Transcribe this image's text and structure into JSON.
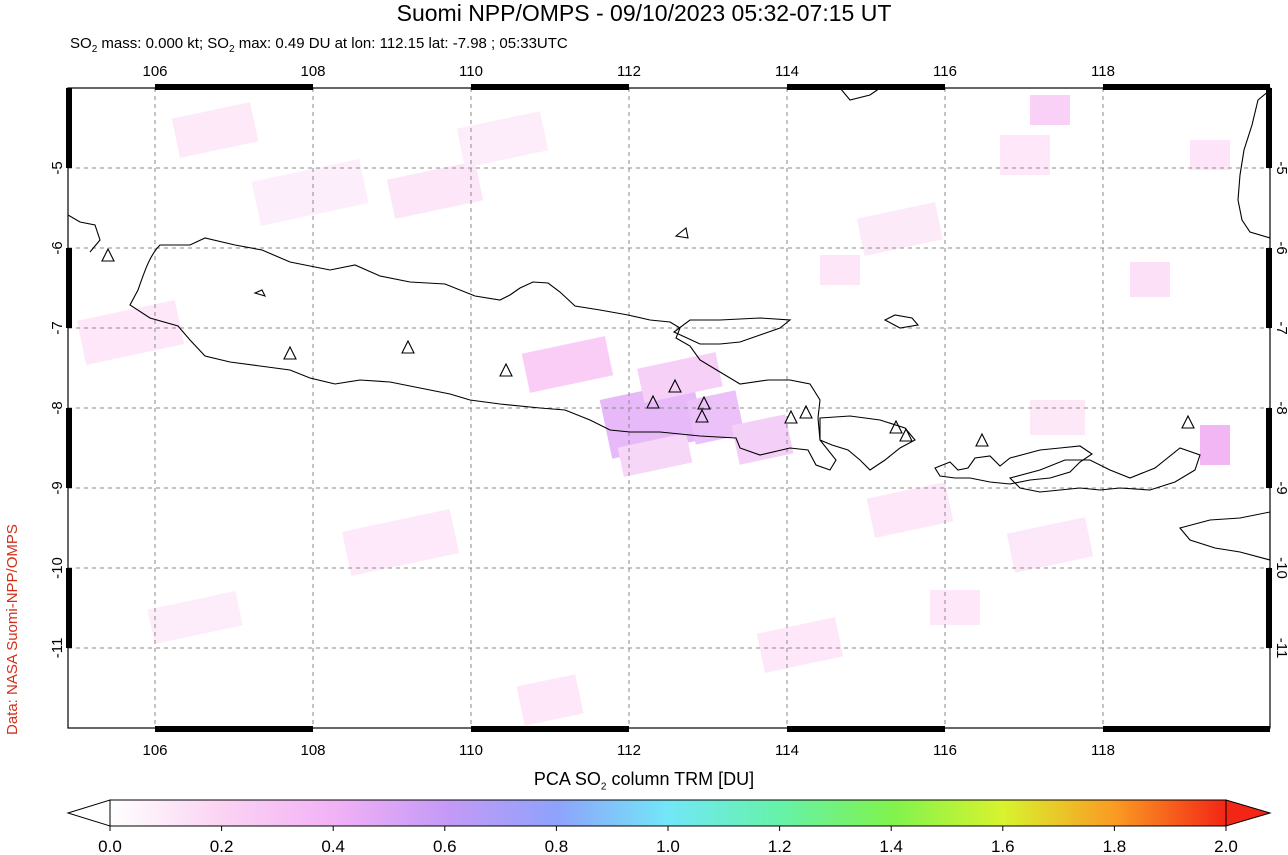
{
  "title": "Suomi NPP/OMPS - 09/10/2023 05:32-07:15 UT",
  "subtitle": {
    "mass_prefix": "SO",
    "mass_sub": "2",
    "mass_text": " mass: 0.000 kt; SO",
    "max_sub": "2",
    "max_text": " max: 0.49 DU at lon: 112.15 lat: -7.98 ; 05:33UTC"
  },
  "credit": "Data: NASA Suomi-NPP/OMPS",
  "map": {
    "lon_ticks": [
      "106",
      "108",
      "110",
      "112",
      "114",
      "116",
      "118"
    ],
    "lat_ticks": [
      "-5",
      "-6",
      "-7",
      "-8",
      "-9",
      "-10",
      "-11"
    ],
    "lon_range": [
      104.9,
      120.0
    ],
    "lat_range": [
      -4.0,
      -12.0
    ],
    "grid": true,
    "volcano_marker": "triangle"
  },
  "colorbar": {
    "title_prefix": "PCA SO",
    "title_sub": "2",
    "title_suffix": " column TRM [DU]",
    "ticks": [
      "0.0",
      "0.2",
      "0.4",
      "0.6",
      "0.8",
      "1.0",
      "1.2",
      "1.4",
      "1.6",
      "1.8",
      "2.0"
    ],
    "range": [
      0.0,
      2.0
    ],
    "colors": [
      "#ffffff",
      "#fbd3f3",
      "#f2b2f6",
      "#c59af6",
      "#8fa2fb",
      "#72e7f7",
      "#66f2a9",
      "#7ff34e",
      "#d8f32e",
      "#fa9b23",
      "#f32615"
    ]
  }
}
